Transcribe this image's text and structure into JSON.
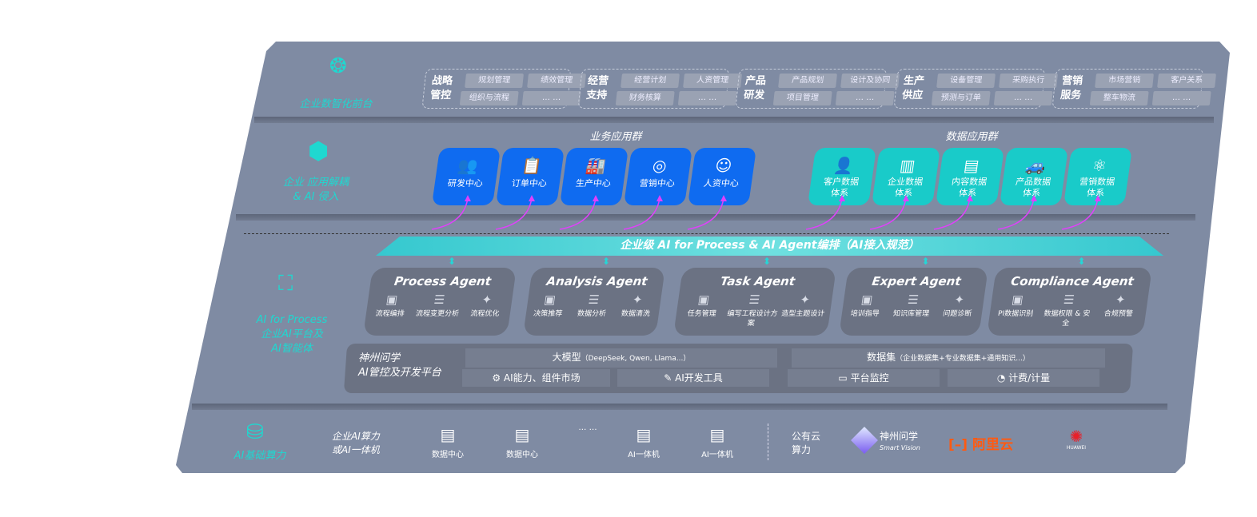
{
  "layers": {
    "front": {
      "label": "企业数智化前台",
      "icon": "brain-icon",
      "groups": [
        {
          "title": "战略管控",
          "chips": [
            "规划管理",
            "绩效管理",
            "组织与流程",
            "… …"
          ]
        },
        {
          "title": "经营支持",
          "chips": [
            "经营计划",
            "人资管理",
            "财务核算",
            "… …"
          ]
        },
        {
          "title": "产品研发",
          "chips": [
            "产品规划",
            "设计及协同",
            "项目管理",
            "… …"
          ]
        },
        {
          "title": "生产供应",
          "chips": [
            "设备管理",
            "采购执行",
            "预测与订单",
            "… …"
          ]
        },
        {
          "title": "营销服务",
          "chips": [
            "市场营销",
            "客户关系",
            "整车物流",
            "… …"
          ]
        }
      ]
    },
    "apps": {
      "label": "企业 应用解耦\n& AI 侵入",
      "icon": "network-node-icon",
      "business_title": "业务应用群",
      "business": [
        {
          "label": "研发中心",
          "icon": "users-icon"
        },
        {
          "label": "订单中心",
          "icon": "clipboard-icon"
        },
        {
          "label": "生产中心",
          "icon": "factory-icon"
        },
        {
          "label": "营销中心",
          "icon": "target-icon"
        },
        {
          "label": "人资中心",
          "icon": "person-icon"
        }
      ],
      "data_title": "数据应用群",
      "data": [
        {
          "label": "客户数据\n体系",
          "icon": "user-icon"
        },
        {
          "label": "企业数据\n体系",
          "icon": "building-icon"
        },
        {
          "label": "内容数据\n体系",
          "icon": "books-icon"
        },
        {
          "label": "产品数据\n体系",
          "icon": "car-icon"
        },
        {
          "label": "营销数据\n体系",
          "icon": "atom-icon"
        }
      ]
    },
    "ai": {
      "label": "AI for Process\n企业AI平台及\nAI智能体",
      "icon": "face-scan-icon",
      "banner": "企业级 AI for Process & AI Agent编排（AI接入规范）",
      "agents": [
        {
          "title": "Process Agent",
          "items": [
            "流程编排",
            "流程变更分析",
            "流程优化"
          ]
        },
        {
          "title": "Analysis Agent",
          "items": [
            "决策推荐",
            "数据分析",
            "数据清洗"
          ]
        },
        {
          "title": "Task Agent",
          "items": [
            "任务管理",
            "编写工程设计方案",
            "造型主题设计"
          ]
        },
        {
          "title": "Expert Agent",
          "items": [
            "培训指导",
            "知识库管理",
            "问题诊断"
          ]
        },
        {
          "title": "Compliance Agent",
          "items": [
            "PI数据识别",
            "数据权限 & 安全",
            "合规预警"
          ]
        }
      ],
      "platform": {
        "title": "神州问学\nAI管控及开发平台",
        "model": "大模型",
        "model_note": "（DeepSeek, Qwen, Llama...）",
        "dataset": "数据集",
        "dataset_note": "（企业数据集+专业数据集+通用知识...）",
        "tools": [
          "AI能力、组件市场",
          "AI开发工具",
          "平台监控",
          "计费/计量"
        ]
      }
    },
    "infra": {
      "label": "AI基础算力",
      "icon": "database-icon",
      "enterprise": "企业AI算力\n或AI一体机",
      "servers": [
        "数据中心",
        "数据中心",
        "… …",
        "AI一体机",
        "AI一体机"
      ],
      "public": "公有云\n算力",
      "vendors": {
        "shenzhou": "神州问学",
        "shenzhou_sub": "Smart Vision",
        "aliyun": "阿里云",
        "huawei": "HUAWEI"
      }
    }
  },
  "colors": {
    "panel": "#7f8ba3",
    "accent": "#1fd8d0",
    "business": "#0f6bf0",
    "data": "#19cbc9",
    "connector": "#e040fb"
  }
}
